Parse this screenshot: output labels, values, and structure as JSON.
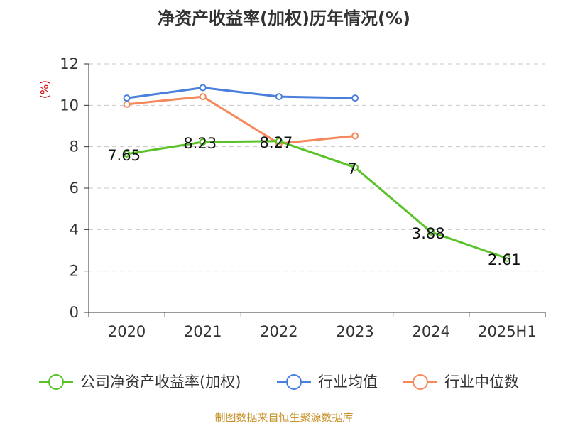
{
  "chart_data": {
    "type": "line",
    "title": "净资产收益率(加权)历年情况(%)",
    "ylabel": "(%)",
    "xlabel": "",
    "categories": [
      "2020",
      "2021",
      "2022",
      "2023",
      "2024",
      "2025H1"
    ],
    "ylim": [
      0,
      12
    ],
    "yticks": [
      0,
      2,
      4,
      6,
      8,
      10,
      12
    ],
    "grid": true,
    "legend": "bottom",
    "series": [
      {
        "name": "公司净资产收益率(加权)",
        "color": "#5ac229",
        "values": [
          7.65,
          8.23,
          8.27,
          7,
          3.88,
          2.61
        ],
        "labels": [
          "7.65",
          "8.23",
          "8.27",
          "7",
          "3.88",
          "2.61"
        ]
      },
      {
        "name": "行业均值",
        "color": "#4a7fdc",
        "values": [
          10.35,
          10.85,
          10.42,
          10.35,
          null,
          null
        ]
      },
      {
        "name": "行业中位数",
        "color": "#f6895c",
        "values": [
          10.05,
          10.42,
          8.15,
          8.52,
          null,
          null
        ]
      }
    ],
    "source": "制图数据来自恒生聚源数据库"
  }
}
